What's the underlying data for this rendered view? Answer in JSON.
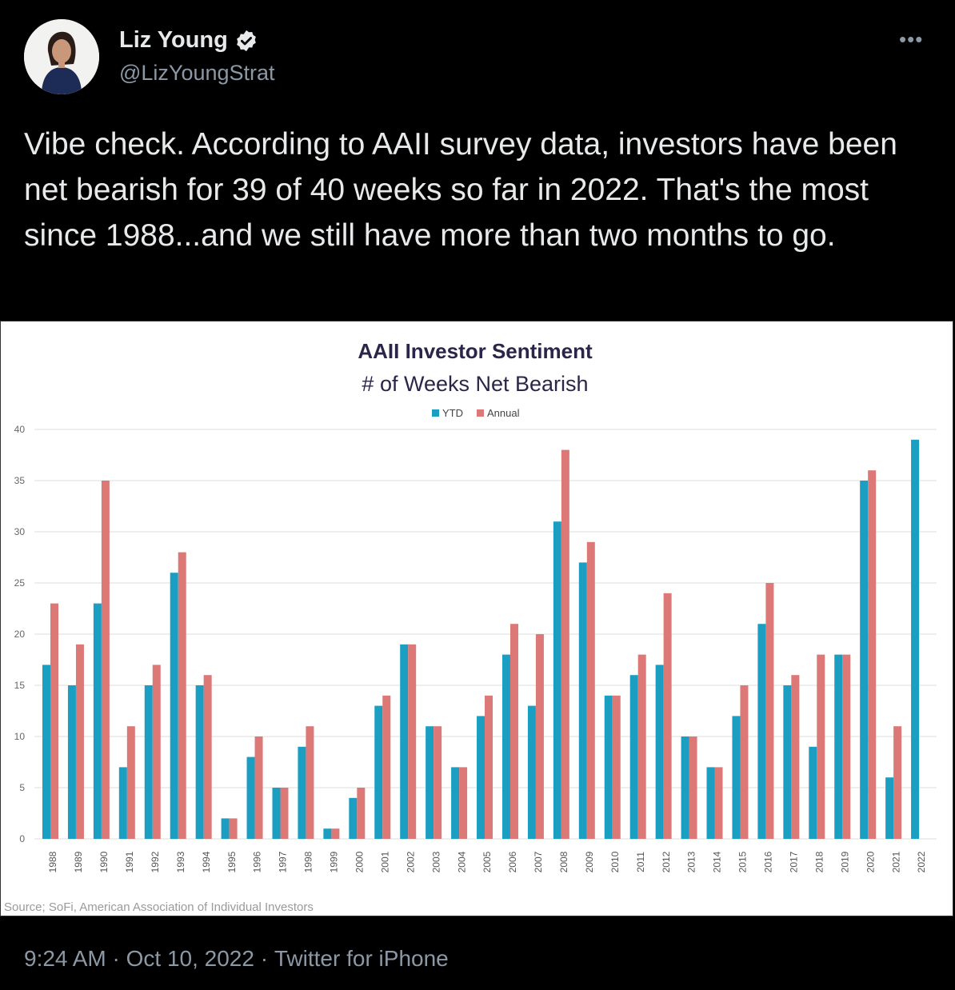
{
  "tweet": {
    "author_name": "Liz Young",
    "handle": "@LizYoungStrat",
    "more_label": "•••",
    "text": "Vibe check. According to AAII survey data, investors have been net bearish for 39 of 40 weeks so far in 2022. That's the most since 1988...and we still have more than two months to go.",
    "time": "9:24 AM",
    "date": "Oct 10, 2022",
    "source": "Twitter for iPhone",
    "separator": " · "
  },
  "colors": {
    "ytd": "#1a9fc2",
    "annual": "#dc7876",
    "title": "#2a2549",
    "verified": "#ffffff"
  },
  "chart_data": {
    "type": "bar",
    "title": "AAII Investor Sentiment",
    "subtitle": "# of Weeks Net Bearish",
    "source_note": "Source; SoFi, American Association of Individual Investors",
    "legend_position": "top-center",
    "grid": true,
    "ylim": [
      0,
      40
    ],
    "yticks": [
      0,
      5,
      10,
      15,
      20,
      25,
      30,
      35,
      40
    ],
    "categories": [
      "1988",
      "1989",
      "1990",
      "1991",
      "1992",
      "1993",
      "1994",
      "1995",
      "1996",
      "1997",
      "1998",
      "1999",
      "2000",
      "2001",
      "2002",
      "2003",
      "2004",
      "2005",
      "2006",
      "2007",
      "2008",
      "2009",
      "2010",
      "2011",
      "2012",
      "2013",
      "2014",
      "2015",
      "2016",
      "2017",
      "2018",
      "2019",
      "2020",
      "2021",
      "2022"
    ],
    "series": [
      {
        "name": "YTD",
        "values": [
          17,
          15,
          23,
          7,
          15,
          26,
          15,
          2,
          8,
          5,
          9,
          1,
          4,
          13,
          19,
          11,
          7,
          12,
          18,
          13,
          31,
          27,
          14,
          16,
          17,
          10,
          7,
          12,
          21,
          15,
          9,
          18,
          35,
          6,
          39
        ]
      },
      {
        "name": "Annual",
        "values": [
          23,
          19,
          35,
          11,
          17,
          28,
          16,
          2,
          10,
          5,
          11,
          1,
          5,
          14,
          19,
          11,
          7,
          14,
          21,
          20,
          38,
          29,
          14,
          18,
          24,
          10,
          7,
          15,
          25,
          16,
          18,
          18,
          36,
          11,
          null
        ]
      }
    ]
  }
}
